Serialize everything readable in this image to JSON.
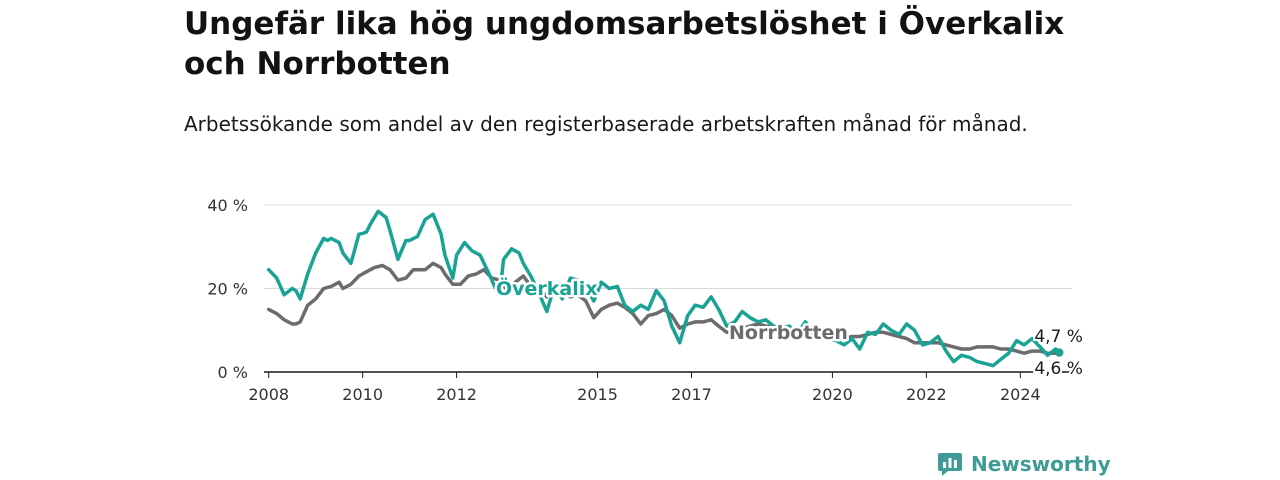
{
  "title": "Ungefär lika hög ungdomsarbetslöshet i Överkalix och Norrbotten",
  "subtitle": "Arbetssökande som andel av den registerbaserade arbetskraften månad för månad.",
  "brand": {
    "name": "Newsworthy",
    "color": "#3e9b95"
  },
  "chart_data": {
    "type": "line",
    "title": "Ungefär lika hög ungdomsarbetslöshet i Överkalix och Norrbotten",
    "subtitle": "Arbetssökande som andel av den registerbaserade arbetskraften månad för månad.",
    "xlabel": "",
    "ylabel": "",
    "xlim": [
      2007.9,
      2025.1
    ],
    "ylim": [
      0,
      40
    ],
    "grid": true,
    "x_ticks": [
      2008,
      2010,
      2012,
      2015,
      2017,
      2020,
      2022,
      2024
    ],
    "x_tick_labels": [
      "2008",
      "2010",
      "2012",
      "2015",
      "2017",
      "2020",
      "2022",
      "2024"
    ],
    "y_ticks": [
      0,
      20,
      40
    ],
    "y_tick_labels": [
      "0 %",
      "20 %",
      "40 %"
    ],
    "series": [
      {
        "name": "Överkalix",
        "color": "#1aa395",
        "end_label": "4,7 %",
        "x": [
          2008.0,
          2008.17,
          2008.33,
          2008.5,
          2008.58,
          2008.67,
          2008.83,
          2009.0,
          2009.17,
          2009.25,
          2009.33,
          2009.5,
          2009.58,
          2009.75,
          2009.92,
          2010.0,
          2010.08,
          2010.17,
          2010.25,
          2010.33,
          2010.5,
          2010.58,
          2010.75,
          2010.92,
          2011.0,
          2011.17,
          2011.33,
          2011.5,
          2011.67,
          2011.75,
          2011.92,
          2012.0,
          2012.17,
          2012.33,
          2012.5,
          2012.67,
          2012.83,
          2012.92,
          2013.0,
          2013.17,
          2013.33,
          2013.42,
          2013.58,
          2013.75,
          2013.92,
          2014.08,
          2014.25,
          2014.42,
          2014.58,
          2014.75,
          2014.92,
          2015.08,
          2015.25,
          2015.42,
          2015.58,
          2015.75,
          2015.92,
          2016.08,
          2016.25,
          2016.42,
          2016.58,
          2016.75,
          2016.92,
          2017.08,
          2017.25,
          2017.42,
          2017.58,
          2017.75,
          2017.92,
          2018.08,
          2018.25,
          2018.42,
          2018.58,
          2018.75,
          2018.92,
          2019.08,
          2019.25,
          2019.42,
          2019.58,
          2019.75,
          2019.92,
          2020.08,
          2020.25,
          2020.42,
          2020.58,
          2020.75,
          2020.92,
          2021.08,
          2021.25,
          2021.42,
          2021.58,
          2021.75,
          2021.92,
          2022.08,
          2022.25,
          2022.42,
          2022.58,
          2022.75,
          2022.92,
          2023.08,
          2023.25,
          2023.42,
          2023.58,
          2023.75,
          2023.92,
          2024.08,
          2024.25,
          2024.42,
          2024.58,
          2024.75,
          2024.83
        ],
        "y": [
          24.5,
          22.5,
          18.5,
          20.0,
          19.5,
          17.5,
          23.5,
          28.5,
          32.0,
          31.5,
          32.0,
          31.0,
          28.5,
          26.0,
          33.0,
          33.2,
          33.5,
          35.5,
          37.0,
          38.5,
          37.0,
          34.0,
          27.0,
          31.5,
          31.5,
          32.5,
          36.5,
          37.8,
          33.0,
          28.0,
          22.5,
          28.0,
          31.0,
          29.0,
          28.0,
          24.0,
          20.0,
          19.0,
          27.0,
          29.5,
          28.5,
          26.0,
          23.0,
          19.0,
          14.5,
          20.5,
          17.5,
          22.5,
          22.0,
          20.5,
          17.0,
          21.5,
          20.0,
          20.5,
          16.0,
          14.5,
          16.0,
          15.0,
          19.5,
          17.0,
          11.0,
          7.0,
          13.5,
          16.0,
          15.5,
          18.0,
          15.0,
          11.0,
          12.0,
          14.5,
          13.0,
          12.0,
          12.5,
          11.0,
          10.5,
          11.0,
          9.0,
          12.0,
          10.0,
          8.0,
          8.0,
          7.5,
          6.5,
          8.0,
          5.5,
          9.5,
          9.0,
          11.5,
          10.0,
          9.0,
          11.5,
          10.0,
          6.5,
          7.0,
          8.5,
          5.0,
          2.5,
          4.0,
          3.5,
          2.5,
          2.0,
          1.5,
          3.0,
          4.5,
          7.5,
          6.5,
          8.0,
          6.0,
          4.0,
          5.5,
          4.7
        ]
      },
      {
        "name": "Norrbotten",
        "color": "#6b6b70",
        "end_label": "4,6 %",
        "x": [
          2008.0,
          2008.17,
          2008.33,
          2008.5,
          2008.58,
          2008.67,
          2008.83,
          2009.0,
          2009.17,
          2009.33,
          2009.5,
          2009.58,
          2009.75,
          2009.92,
          2010.08,
          2010.25,
          2010.42,
          2010.58,
          2010.75,
          2010.92,
          2011.08,
          2011.25,
          2011.33,
          2011.5,
          2011.67,
          2011.75,
          2011.92,
          2012.08,
          2012.25,
          2012.42,
          2012.58,
          2012.75,
          2012.92,
          2013.08,
          2013.25,
          2013.42,
          2013.58,
          2013.75,
          2013.92,
          2014.08,
          2014.25,
          2014.42,
          2014.58,
          2014.75,
          2014.92,
          2015.08,
          2015.25,
          2015.42,
          2015.58,
          2015.75,
          2015.92,
          2016.08,
          2016.25,
          2016.42,
          2016.58,
          2016.75,
          2016.92,
          2017.08,
          2017.25,
          2017.42,
          2017.58,
          2017.75,
          2017.92,
          2018.08,
          2018.25,
          2018.42,
          2018.58,
          2018.75,
          2018.92,
          2019.08,
          2019.25,
          2019.42,
          2019.58,
          2019.75,
          2019.92,
          2020.08,
          2020.25,
          2020.42,
          2020.58,
          2020.75,
          2020.92,
          2021.08,
          2021.25,
          2021.42,
          2021.58,
          2021.75,
          2021.92,
          2022.08,
          2022.25,
          2022.42,
          2022.58,
          2022.75,
          2022.92,
          2023.08,
          2023.25,
          2023.42,
          2023.58,
          2023.75,
          2023.92,
          2024.08,
          2024.25,
          2024.42,
          2024.58,
          2024.75,
          2024.83
        ],
        "y": [
          15.0,
          14.0,
          12.5,
          11.5,
          11.5,
          12.0,
          16.0,
          17.5,
          20.0,
          20.5,
          21.5,
          20.0,
          21.0,
          23.0,
          24.0,
          25.0,
          25.5,
          24.5,
          22.0,
          22.5,
          24.5,
          24.5,
          24.5,
          26.0,
          25.0,
          23.5,
          21.0,
          21.0,
          23.0,
          23.5,
          24.5,
          22.5,
          22.0,
          19.5,
          21.5,
          23.0,
          20.5,
          20.0,
          18.0,
          20.5,
          19.0,
          18.0,
          18.5,
          17.0,
          13.0,
          15.0,
          16.0,
          16.5,
          15.5,
          14.0,
          11.5,
          13.5,
          14.0,
          15.0,
          13.5,
          10.5,
          11.5,
          12.0,
          12.0,
          12.5,
          11.0,
          9.5,
          9.5,
          10.5,
          11.0,
          11.5,
          11.0,
          11.0,
          10.5,
          10.0,
          9.5,
          10.0,
          9.0,
          8.5,
          8.0,
          8.5,
          8.0,
          8.5,
          8.5,
          9.0,
          9.5,
          9.5,
          9.0,
          8.5,
          8.0,
          7.0,
          7.0,
          7.0,
          7.0,
          6.5,
          6.0,
          5.5,
          5.5,
          6.0,
          6.0,
          6.0,
          5.5,
          5.5,
          5.0,
          4.5,
          5.0,
          5.0,
          4.5,
          4.5,
          4.6
        ]
      }
    ]
  }
}
